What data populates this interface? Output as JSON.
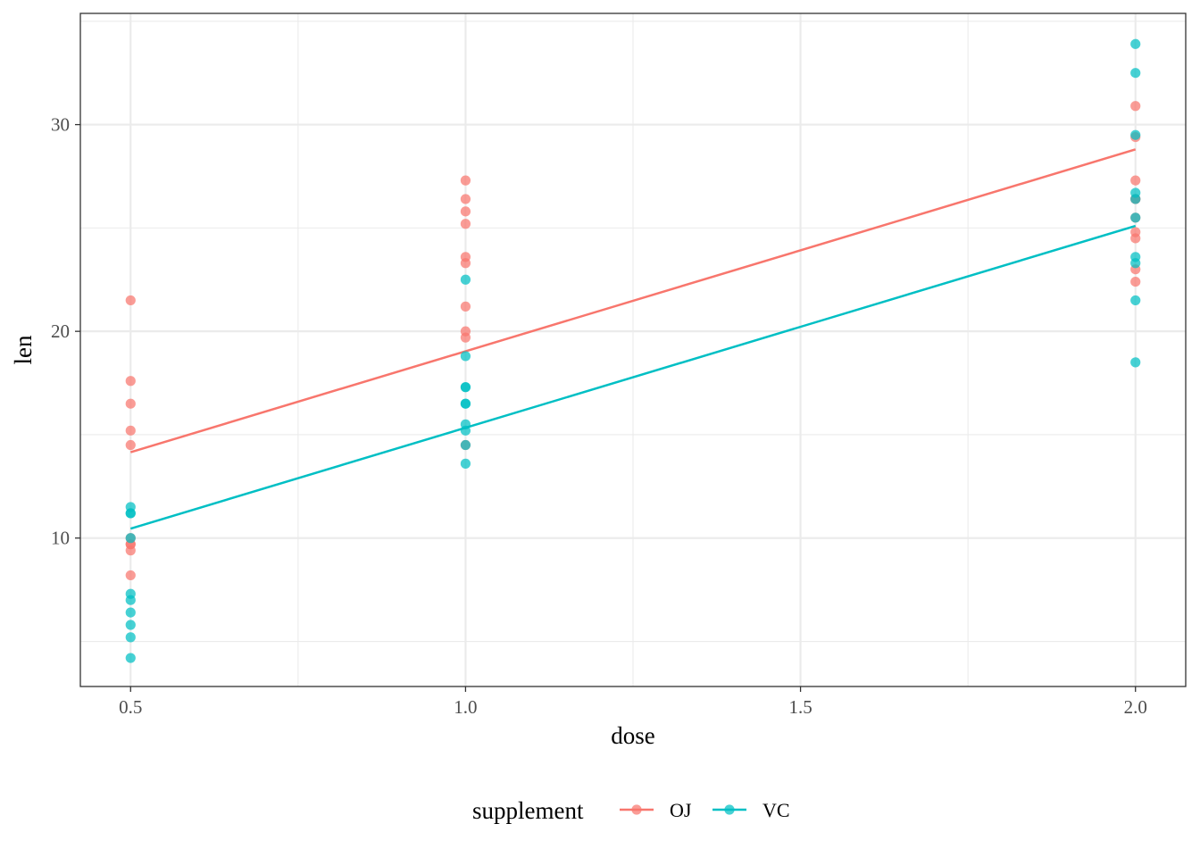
{
  "chart_data": {
    "type": "scatter",
    "title": "",
    "xlabel": "dose",
    "ylabel": "len",
    "xlim": [
      0.425,
      2.075
    ],
    "ylim": [
      2.82,
      35.38
    ],
    "x_ticks": [
      0.5,
      1.0,
      1.5,
      2.0
    ],
    "x_tick_labels": [
      "0.5",
      "1.0",
      "1.5",
      "2.0"
    ],
    "y_ticks": [
      10,
      20,
      30
    ],
    "y_tick_labels": [
      "10",
      "20",
      "30"
    ],
    "grid": true,
    "legend": {
      "title": "supplement",
      "placement": "bottom"
    },
    "series": [
      {
        "name": "OJ",
        "color": "#F8766D",
        "points": [
          [
            0.5,
            15.2
          ],
          [
            0.5,
            21.5
          ],
          [
            0.5,
            17.6
          ],
          [
            0.5,
            9.7
          ],
          [
            0.5,
            14.5
          ],
          [
            0.5,
            10.0
          ],
          [
            0.5,
            8.2
          ],
          [
            0.5,
            9.4
          ],
          [
            0.5,
            16.5
          ],
          [
            0.5,
            9.7
          ],
          [
            1.0,
            19.7
          ],
          [
            1.0,
            23.3
          ],
          [
            1.0,
            23.6
          ],
          [
            1.0,
            26.4
          ],
          [
            1.0,
            20.0
          ],
          [
            1.0,
            25.2
          ],
          [
            1.0,
            25.8
          ],
          [
            1.0,
            21.2
          ],
          [
            1.0,
            14.5
          ],
          [
            1.0,
            27.3
          ],
          [
            2.0,
            25.5
          ],
          [
            2.0,
            26.4
          ],
          [
            2.0,
            22.4
          ],
          [
            2.0,
            24.5
          ],
          [
            2.0,
            24.8
          ],
          [
            2.0,
            30.9
          ],
          [
            2.0,
            26.4
          ],
          [
            2.0,
            27.3
          ],
          [
            2.0,
            29.4
          ],
          [
            2.0,
            23.0
          ]
        ],
        "fit": {
          "slope": 9.764,
          "intercept": 9.2725
        }
      },
      {
        "name": "VC",
        "color": "#00BFC4",
        "points": [
          [
            0.5,
            4.2
          ],
          [
            0.5,
            11.5
          ],
          [
            0.5,
            7.3
          ],
          [
            0.5,
            5.8
          ],
          [
            0.5,
            6.4
          ],
          [
            0.5,
            10.0
          ],
          [
            0.5,
            11.2
          ],
          [
            0.5,
            11.2
          ],
          [
            0.5,
            5.2
          ],
          [
            0.5,
            7.0
          ],
          [
            1.0,
            16.5
          ],
          [
            1.0,
            16.5
          ],
          [
            1.0,
            15.2
          ],
          [
            1.0,
            17.3
          ],
          [
            1.0,
            22.5
          ],
          [
            1.0,
            17.3
          ],
          [
            1.0,
            13.6
          ],
          [
            1.0,
            14.5
          ],
          [
            1.0,
            18.8
          ],
          [
            1.0,
            15.5
          ],
          [
            2.0,
            23.6
          ],
          [
            2.0,
            18.5
          ],
          [
            2.0,
            33.9
          ],
          [
            2.0,
            25.5
          ],
          [
            2.0,
            26.4
          ],
          [
            2.0,
            32.5
          ],
          [
            2.0,
            26.7
          ],
          [
            2.0,
            21.5
          ],
          [
            2.0,
            23.3
          ],
          [
            2.0,
            29.5
          ]
        ],
        "fit": {
          "slope": 9.764,
          "intercept": 5.5725
        }
      }
    ]
  }
}
